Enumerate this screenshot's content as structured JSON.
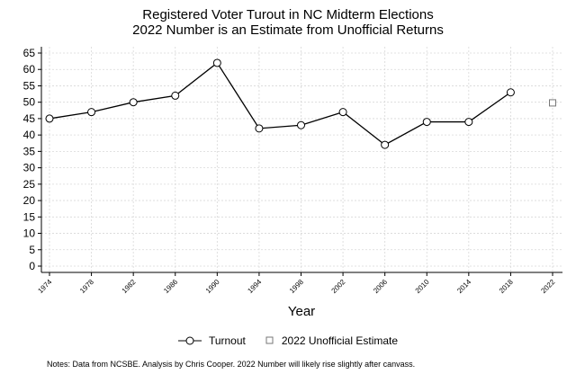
{
  "chart_data": {
    "type": "line",
    "title": "Registered Voter Turout in NC Midterm Elections",
    "subtitle": "2022 Number is an Estimate from Unofficial Returns",
    "xlabel": "Year",
    "ylabel": "",
    "ylim": [
      0,
      65
    ],
    "yticks": [
      0,
      5,
      10,
      15,
      20,
      25,
      30,
      35,
      40,
      45,
      50,
      55,
      60,
      65
    ],
    "xticks": [
      "1974",
      "1978",
      "1982",
      "1986",
      "1990",
      "1994",
      "1998",
      "2002",
      "2006",
      "2010",
      "2014",
      "2018",
      "2022"
    ],
    "grid": true,
    "legend_position": "bottom",
    "series": [
      {
        "name": "Turnout",
        "marker": "circle",
        "line": true,
        "x": [
          1974,
          1978,
          1982,
          1986,
          1990,
          1994,
          1998,
          2002,
          2006,
          2010,
          2014,
          2018
        ],
        "values": [
          45,
          47,
          50,
          52,
          62,
          42,
          43,
          47,
          37,
          44,
          44,
          53
        ]
      },
      {
        "name": "2022 Unofficial Estimate",
        "marker": "square",
        "line": false,
        "x": [
          2022
        ],
        "values": [
          49.8
        ]
      }
    ],
    "notes": "Notes: Data from NCSBE. Analysis by Chris Cooper. 2022 Number will likely rise slightly after canvass."
  }
}
